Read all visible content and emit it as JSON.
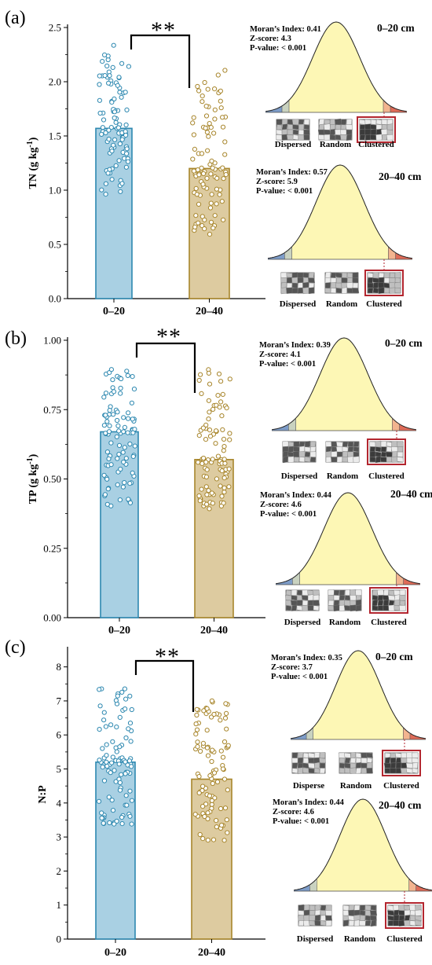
{
  "chart_data": [
    {
      "type": "bar",
      "panel_label": "(a)",
      "ylabel": "TN (g kg",
      "ylabel_sup": "-1",
      "ylabel_tail": ")",
      "categories": [
        "0–20",
        "20–40"
      ],
      "values": [
        1.57,
        1.2
      ],
      "ylim": [
        0,
        2.5
      ],
      "yticks": [
        0.0,
        0.5,
        1.0,
        1.5,
        2.0,
        2.5
      ],
      "ytick_labels": [
        "0.0",
        "0.5",
        "1.0",
        "1.5",
        "2.0",
        "2.5"
      ],
      "minor_per_major": 1,
      "points_range": [
        [
          0.95,
          2.34
        ],
        [
          0.56,
          2.15
        ]
      ],
      "significance": "**",
      "morans": [
        {
          "depth": "0–20 cm",
          "index": "Moran’s Index: 0.41",
          "z": "Z-score: 4.3",
          "p": "P-value: < 0.001",
          "labels": [
            "Dispersed",
            "Random",
            "Clustered"
          ]
        },
        {
          "depth": "20–40 cm",
          "index": "Moran’s Index: 0.57",
          "z": "Z-score: 5.9",
          "p": "P-value: < 0.001",
          "labels": [
            "Dispersed",
            "Random",
            "Clustered"
          ]
        }
      ]
    },
    {
      "type": "bar",
      "panel_label": "(b)",
      "ylabel": "TP (g kg",
      "ylabel_sup": "-1",
      "ylabel_tail": ")",
      "categories": [
        "0–20",
        "20–40"
      ],
      "values": [
        0.67,
        0.57
      ],
      "ylim": [
        0,
        1.0
      ],
      "yticks": [
        0.0,
        0.25,
        0.5,
        0.75,
        1.0
      ],
      "ytick_labels": [
        "0.00",
        "0.25",
        "0.50",
        "0.75",
        "1.00"
      ],
      "minor_per_major": 1,
      "points_range": [
        [
          0.39,
          0.9
        ],
        [
          0.39,
          0.9
        ]
      ],
      "significance": "**",
      "morans": [
        {
          "depth": "0–20 cm",
          "index": "Moran’s Index: 0.39",
          "z": "Z-score: 4.1",
          "p": "P-value: < 0.001",
          "labels": [
            "Dispersed",
            "Random",
            "Clustered"
          ]
        },
        {
          "depth": "20–40 cm",
          "index": "Moran’s Index: 0.44",
          "z": "Z-score: 4.6",
          "p": "P-value: < 0.001",
          "labels": [
            "Dispersed",
            "Random",
            "Clustered"
          ]
        }
      ]
    },
    {
      "type": "bar",
      "panel_label": "(c)",
      "ylabel": "N:P",
      "ylabel_sup": "",
      "ylabel_tail": "",
      "categories": [
        "0–20",
        "20–40"
      ],
      "values": [
        5.2,
        4.7
      ],
      "ylim": [
        0,
        8.5
      ],
      "yticks": [
        0,
        1,
        2,
        3,
        4,
        5,
        6,
        7,
        8
      ],
      "ytick_labels": [
        "0",
        "1",
        "2",
        "3",
        "4",
        "5",
        "6",
        "7",
        "8"
      ],
      "minor_per_major": 1,
      "points_range": [
        [
          3.3,
          7.4
        ],
        [
          2.85,
          7.05
        ]
      ],
      "significance": "**",
      "morans": [
        {
          "depth": "0–20 cm",
          "index": "Moran’s Index: 0.35",
          "z": "Z-score: 3.7",
          "p": "P-value: < 0.001",
          "labels": [
            "Disperse",
            "Random",
            "Clustered"
          ]
        },
        {
          "depth": "20–40 cm",
          "index": "Moran’s Index: 0.44",
          "z": "Z-score: 4.6",
          "p": "P-value: < 0.001",
          "labels": [
            "Dispersed",
            "Random",
            "Clustered"
          ]
        }
      ]
    }
  ],
  "colors": {
    "bar_0_20_fill": "#a9d0e3",
    "bar_0_20_edge": "#2d88b0",
    "bar_20_40_fill": "#ddcba0",
    "bar_20_40_edge": "#a8862c",
    "curve_fill": "#fdf7b5",
    "tail_blue": "#7d9cc8",
    "tail_gray": "#c9d2c0",
    "tail_orange": "#f2b48f",
    "tail_red": "#de6b58",
    "clustered_border": "#b3262f"
  }
}
